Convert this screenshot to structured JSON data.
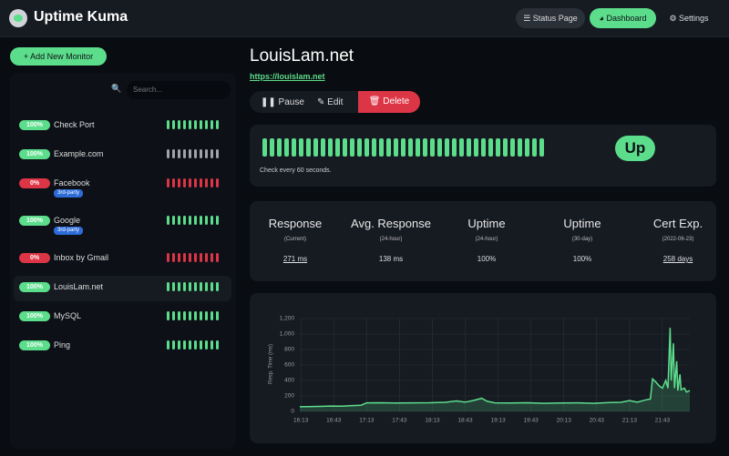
{
  "header": {
    "brand": "Uptime Kuma",
    "nav": [
      "Status Page",
      "Dashboard",
      "Settings"
    ]
  },
  "sidebar": {
    "add_button": "Add New Monitor",
    "search_placeholder": "Search...",
    "monitors": [
      {
        "uptime": "100%",
        "name": "Check Port",
        "color": "#5cdd8b"
      },
      {
        "uptime": "100%",
        "name": "Example.com",
        "color": "#a0a4a8"
      },
      {
        "uptime": "0%",
        "name": "Facebook",
        "color": "#dc3545",
        "tag": "3rd-party"
      },
      {
        "uptime": "100%",
        "name": "Google",
        "color": "#5cdd8b",
        "tag": "3rd-party"
      },
      {
        "uptime": "0%",
        "name": "Inbox by Gmail",
        "color": "#dc3545"
      },
      {
        "uptime": "100%",
        "name": "LouisLam.net",
        "color": "#5cdd8b",
        "active": true
      },
      {
        "uptime": "100%",
        "name": "MySQL",
        "color": "#5cdd8b"
      },
      {
        "uptime": "100%",
        "name": "Ping",
        "color": "#5cdd8b"
      }
    ]
  },
  "monitor": {
    "name": "LouisLam.net",
    "url": "https://louislam.net",
    "actions": [
      "Pause",
      "Edit",
      "Delete"
    ],
    "status": "Up",
    "check_note": "Check every 60 seconds.",
    "stats": [
      {
        "title": "Response",
        "period": "(Current)",
        "value": "271 ms"
      },
      {
        "title": "Avg. Response",
        "period": "(24-hour)",
        "value": "138 ms"
      },
      {
        "title": "Uptime",
        "period": "(24-hour)",
        "value": "100%"
      },
      {
        "title": "Uptime",
        "period": "(30-day)",
        "value": "100%"
      },
      {
        "title": "Cert Exp.",
        "period": "(2022-06-23)",
        "value": "258 days"
      }
    ]
  },
  "chart_data": {
    "type": "line",
    "y_label": "Resp. Time (ms)",
    "x": [
      "16:12",
      "16:20",
      "16:30",
      "16:40",
      "16:50",
      "17:00",
      "17:08",
      "17:13",
      "17:25",
      "17:40",
      "17:55",
      "18:10",
      "18:25",
      "18:35",
      "18:43",
      "18:50",
      "18:58",
      "19:03",
      "19:10",
      "19:25",
      "19:40",
      "19:55",
      "20:10",
      "20:25",
      "20:40",
      "20:55",
      "21:05",
      "21:13",
      "21:20",
      "21:28",
      "21:32",
      "21:34",
      "21:37",
      "21:40",
      "21:43",
      "21:46",
      "21:48",
      "21:50",
      "21:51",
      "21:53",
      "21:54",
      "21:56",
      "21:57",
      "21:59",
      "22:00",
      "22:03",
      "22:05",
      "22:08"
    ],
    "series": [
      {
        "name": "Resp. Time",
        "color": "#5cdd8b",
        "values": [
          60,
          62,
          65,
          70,
          68,
          75,
          80,
          110,
          112,
          108,
          110,
          112,
          118,
          135,
          120,
          140,
          170,
          130,
          110,
          108,
          112,
          105,
          108,
          110,
          105,
          115,
          118,
          140,
          120,
          150,
          160,
          420,
          380,
          330,
          300,
          400,
          300,
          1080,
          400,
          880,
          300,
          650,
          270,
          480,
          280,
          300,
          250,
          270
        ]
      }
    ],
    "xlim": [
      "16:12",
      "22:08"
    ],
    "xticks": [
      "16:13",
      "16:43",
      "17:13",
      "17:43",
      "18:13",
      "18:43",
      "19:13",
      "19:43",
      "20:13",
      "20:43",
      "21:13",
      "21:43"
    ],
    "ylim": [
      0,
      1200
    ],
    "yticks": [
      0,
      200,
      400,
      600,
      800,
      {
        "value": 1000,
        "label": "1,000"
      },
      {
        "value": 1200,
        "label": "1,200"
      }
    ],
    "grid": true
  }
}
